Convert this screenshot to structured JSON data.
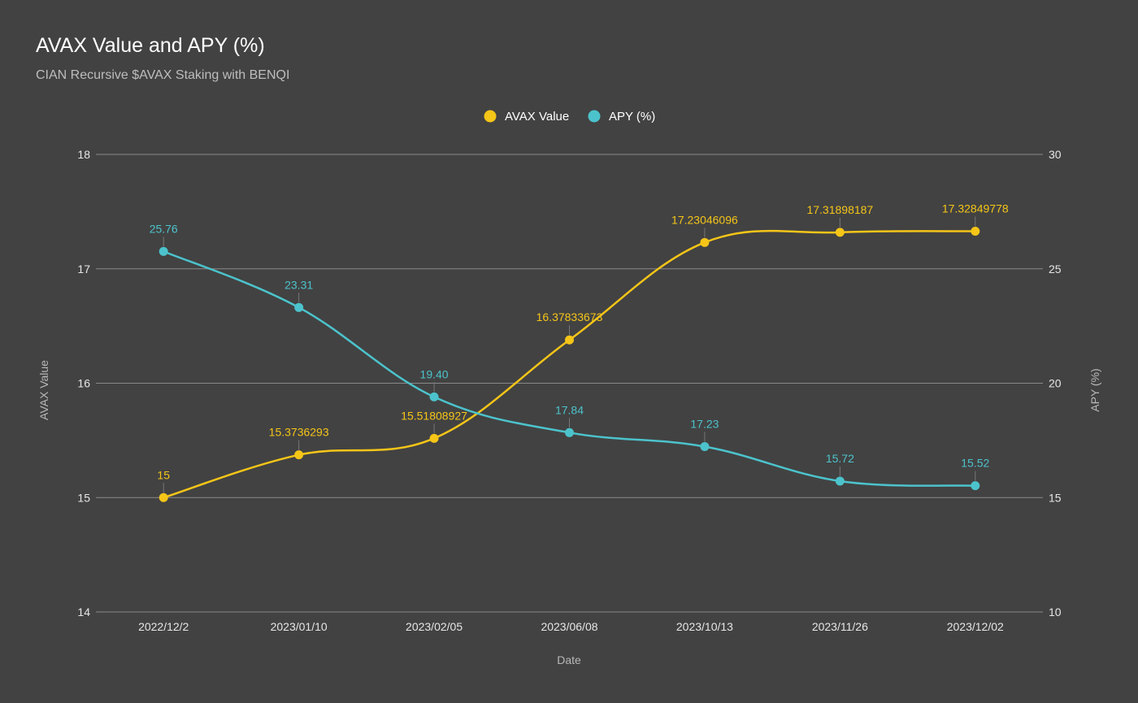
{
  "title": "AVAX Value and APY (%)",
  "subtitle": "CIAN Recursive $AVAX Staking with BENQI",
  "colors": {
    "background": "#424242",
    "grid": "#8a8a8a",
    "avax": "#f5c518",
    "apy": "#4cc3cc"
  },
  "chart_data": {
    "type": "line",
    "title": "AVAX Value and APY (%)",
    "subtitle": "CIAN Recursive $AVAX Staking with BENQI",
    "xlabel": "Date",
    "ylabel_left": "AVAX Value",
    "ylabel_right": "APY (%)",
    "categories": [
      "2022/12/2",
      "2023/01/10",
      "2023/02/05",
      "2023/06/08",
      "2023/10/13",
      "2023/11/26",
      "2023/12/02"
    ],
    "y_left": {
      "range": [
        14,
        18
      ],
      "ticks": [
        14,
        15,
        16,
        17,
        18
      ]
    },
    "y_right": {
      "range": [
        10,
        30
      ],
      "ticks": [
        10,
        15,
        20,
        25,
        30
      ]
    },
    "grid": true,
    "legend": "top-center",
    "series": [
      {
        "name": "AVAX Value",
        "axis": "left",
        "color": "#f5c518",
        "values": [
          15,
          15.3736293,
          15.51808927,
          16.37833673,
          17.23046096,
          17.31898187,
          17.32849778
        ],
        "labels": [
          "15",
          "15.3736293",
          "15.51808927",
          "16.37833673",
          "17.23046096",
          "17.31898187",
          "17.32849778"
        ]
      },
      {
        "name": "APY (%)",
        "axis": "right",
        "color": "#4cc3cc",
        "values": [
          25.76,
          23.31,
          19.4,
          17.84,
          17.23,
          15.72,
          15.52
        ],
        "labels": [
          "25.76",
          "23.31",
          "19.40",
          "17.84",
          "17.23",
          "15.72",
          "15.52"
        ]
      }
    ]
  }
}
